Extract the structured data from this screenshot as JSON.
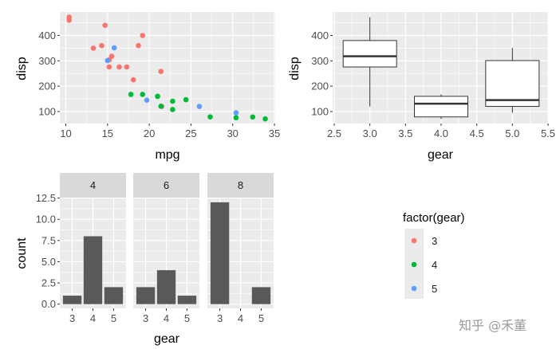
{
  "chart_data": [
    {
      "type": "scatter",
      "xlabel": "mpg",
      "ylabel": "disp",
      "xlim": [
        9.2,
        35.1
      ],
      "ylim": [
        50,
        492
      ],
      "xticks": [
        "10",
        "15",
        "20",
        "25",
        "30",
        "35"
      ],
      "yticks": [
        "100",
        "200",
        "300",
        "400"
      ],
      "grid": true,
      "color_by": "factor(gear)",
      "points": [
        {
          "x": 21,
          "y": 160,
          "gear": 4
        },
        {
          "x": 21,
          "y": 160,
          "gear": 4
        },
        {
          "x": 22.8,
          "y": 108,
          "gear": 4
        },
        {
          "x": 21.4,
          "y": 258,
          "gear": 3
        },
        {
          "x": 18.7,
          "y": 360,
          "gear": 3
        },
        {
          "x": 18.1,
          "y": 225,
          "gear": 3
        },
        {
          "x": 14.3,
          "y": 360,
          "gear": 3
        },
        {
          "x": 24.4,
          "y": 146.7,
          "gear": 4
        },
        {
          "x": 22.8,
          "y": 140.8,
          "gear": 4
        },
        {
          "x": 19.2,
          "y": 167.6,
          "gear": 4
        },
        {
          "x": 17.8,
          "y": 167.6,
          "gear": 4
        },
        {
          "x": 16.4,
          "y": 275.8,
          "gear": 3
        },
        {
          "x": 17.3,
          "y": 275.8,
          "gear": 3
        },
        {
          "x": 15.2,
          "y": 275.8,
          "gear": 3
        },
        {
          "x": 10.4,
          "y": 472,
          "gear": 3
        },
        {
          "x": 10.4,
          "y": 460,
          "gear": 3
        },
        {
          "x": 14.7,
          "y": 440,
          "gear": 3
        },
        {
          "x": 32.4,
          "y": 78.7,
          "gear": 4
        },
        {
          "x": 30.4,
          "y": 75.7,
          "gear": 4
        },
        {
          "x": 33.9,
          "y": 71.1,
          "gear": 4
        },
        {
          "x": 21.5,
          "y": 120.1,
          "gear": 3
        },
        {
          "x": 15.5,
          "y": 318,
          "gear": 3
        },
        {
          "x": 15.2,
          "y": 304,
          "gear": 3
        },
        {
          "x": 13.3,
          "y": 350,
          "gear": 3
        },
        {
          "x": 19.2,
          "y": 400,
          "gear": 3
        },
        {
          "x": 27.3,
          "y": 79,
          "gear": 4
        },
        {
          "x": 26,
          "y": 120.3,
          "gear": 5
        },
        {
          "x": 30.4,
          "y": 95.1,
          "gear": 5
        },
        {
          "x": 15.8,
          "y": 351,
          "gear": 5
        },
        {
          "x": 19.7,
          "y": 145,
          "gear": 5
        },
        {
          "x": 15,
          "y": 301,
          "gear": 5
        },
        {
          "x": 21.4,
          "y": 121,
          "gear": 4
        }
      ]
    },
    {
      "type": "boxplot",
      "xlabel": "gear",
      "ylabel": "disp",
      "xlim": [
        2.5,
        5.5
      ],
      "ylim": [
        50,
        492
      ],
      "xticks": [
        "2.5",
        "3.0",
        "3.5",
        "4.0",
        "4.5",
        "5.0",
        "5.5"
      ],
      "yticks": [
        "100",
        "200",
        "300",
        "400"
      ],
      "grid": true,
      "boxes": [
        {
          "x": 3,
          "min": 120.1,
          "q1": 275.8,
          "median": 318,
          "q3": 380,
          "max": 472
        },
        {
          "x": 4,
          "min": 71.1,
          "q1": 78.9,
          "median": 130.9,
          "q3": 160,
          "max": 167.6
        },
        {
          "x": 5,
          "min": 95.1,
          "q1": 120.3,
          "median": 145,
          "q3": 301,
          "max": 351
        }
      ]
    },
    {
      "type": "bar",
      "xlabel": "gear",
      "ylabel": "count",
      "ylim": [
        0,
        12.6
      ],
      "yticks": [
        "0.0",
        "2.5",
        "5.0",
        "7.5",
        "10.0",
        "12.5"
      ],
      "categories": [
        "3",
        "4",
        "5"
      ],
      "grid": true,
      "facets": [
        {
          "label": "4",
          "values": [
            1,
            8,
            2
          ]
        },
        {
          "label": "6",
          "values": [
            2,
            4,
            1
          ]
        },
        {
          "label": "8",
          "values": [
            12,
            0,
            2
          ]
        }
      ]
    }
  ],
  "legend": {
    "title": "factor(gear)",
    "placement": "right",
    "items": [
      {
        "label": "3",
        "color": "#F8766D"
      },
      {
        "label": "4",
        "color": "#00BA38"
      },
      {
        "label": "5",
        "color": "#619CFF"
      }
    ]
  },
  "colors": {
    "panel": "#EBEBEB",
    "grid": "#FFFFFF",
    "strip": "#D9D9D9",
    "bar": "#595959"
  },
  "watermark": "知乎 @禾董"
}
